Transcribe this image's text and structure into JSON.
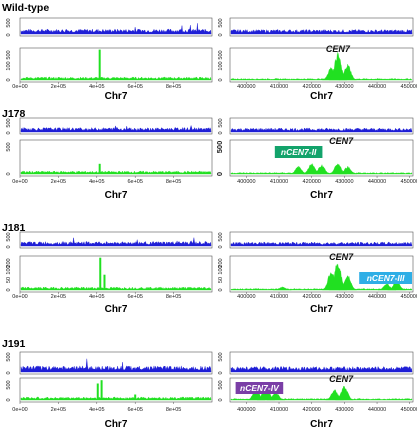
{
  "colors": {
    "input_track": "#1f1fd6",
    "chip_track": "#21e021",
    "axis": "#333333",
    "tag_green": "#13a36b",
    "tag_blue": "#2eaee6",
    "tag_purple": "#7a3ea6"
  },
  "left_x_ticks": [
    "0e+00",
    "2e+05",
    "4e+05",
    "6e+05",
    "8e+05"
  ],
  "right_x_ticks": [
    "400000",
    "410000",
    "420000",
    "430000",
    "440000",
    "450000"
  ],
  "chr_label": "Chr7",
  "cen_label": "CEN7",
  "chart_data": [
    {
      "type": "area",
      "sample": "Wild-type",
      "xlim_left": [
        0,
        1000000
      ],
      "xlim_right": [
        395000,
        451000
      ],
      "input_yticks": [
        "500",
        "0"
      ],
      "chip_yticks": [
        "500",
        "100",
        "0"
      ],
      "chip_peaks_left": [
        {
          "x": 415000,
          "height": 0.95
        }
      ],
      "chip_peaks_right": [
        {
          "x": 426000,
          "height": 0.45
        },
        {
          "x": 428000,
          "height": 0.95
        },
        {
          "x": 431000,
          "height": 0.55
        }
      ],
      "annotations": [
        {
          "text": "CEN7",
          "x": 428000
        }
      ]
    },
    {
      "type": "area",
      "sample": "J178",
      "xlim_left": [
        0,
        1000000
      ],
      "xlim_right": [
        395000,
        451000
      ],
      "input_yticks": [
        "500",
        "0"
      ],
      "chip_yticks": [
        "500",
        "0"
      ],
      "chip_peaks_left": [
        {
          "x": 415000,
          "height": 0.3
        }
      ],
      "chip_peaks_right": [
        {
          "x": 416000,
          "height": 0.25
        },
        {
          "x": 420000,
          "height": 0.35
        },
        {
          "x": 423000,
          "height": 0.3
        },
        {
          "x": 428000,
          "height": 0.35
        },
        {
          "x": 431000,
          "height": 0.25
        }
      ],
      "annotations": [
        {
          "text": "nCEN7-II",
          "x": 416000,
          "tag": "green"
        },
        {
          "text": "CEN7",
          "x": 429000
        }
      ]
    },
    {
      "type": "area",
      "sample": "J181",
      "xlim_left": [
        0,
        1000000
      ],
      "xlim_right": [
        395000,
        451000
      ],
      "input_yticks": [
        "500",
        "0"
      ],
      "chip_yticks": [
        "200",
        "100",
        "50",
        "0"
      ],
      "chip_peaks_left": [
        {
          "x": 418000,
          "height": 0.95
        },
        {
          "x": 440000,
          "height": 0.45
        }
      ],
      "chip_peaks_right": [
        {
          "x": 411000,
          "height": 0.1
        },
        {
          "x": 426000,
          "height": 0.65
        },
        {
          "x": 428000,
          "height": 0.95
        },
        {
          "x": 431000,
          "height": 0.5
        },
        {
          "x": 443000,
          "height": 0.2
        },
        {
          "x": 446000,
          "height": 0.3
        }
      ],
      "annotations": [
        {
          "text": "CEN7",
          "x": 429000
        },
        {
          "text": "nCEN7-III",
          "x": 445000,
          "tag": "blue"
        }
      ]
    },
    {
      "type": "area",
      "sample": "J191",
      "xlim_left": [
        0,
        1000000
      ],
      "xlim_right": [
        395000,
        451000
      ],
      "input_yticks": [
        "500",
        "0"
      ],
      "chip_yticks": [
        "500",
        "0"
      ],
      "chip_peaks_left": [
        {
          "x": 405000,
          "height": 0.75
        },
        {
          "x": 425000,
          "height": 0.9
        },
        {
          "x": 600000,
          "height": 0.25
        }
      ],
      "chip_peaks_right": [
        {
          "x": 403000,
          "height": 0.55
        },
        {
          "x": 406000,
          "height": 0.85
        },
        {
          "x": 409000,
          "height": 0.4
        },
        {
          "x": 427000,
          "height": 0.55
        },
        {
          "x": 430000,
          "height": 0.75
        }
      ],
      "annotations": [
        {
          "text": "nCEN7-IV",
          "x": 404000,
          "tag": "purple"
        },
        {
          "text": "CEN7",
          "x": 429000
        }
      ]
    }
  ]
}
